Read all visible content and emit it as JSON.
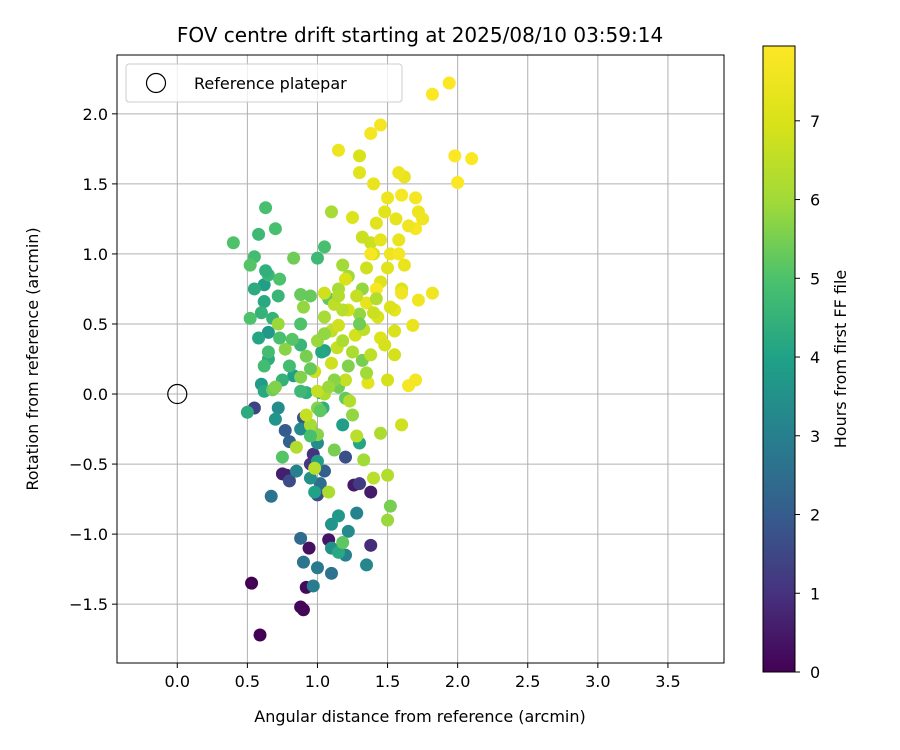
{
  "chart_data": {
    "type": "scatter",
    "title": "FOV centre drift starting at 2025/08/10 03:59:14",
    "xlabel": "Angular distance from reference (arcmin)",
    "ylabel": "Rotation from reference (arcmin)",
    "xlim": [
      -0.43,
      3.9
    ],
    "ylim": [
      -1.92,
      2.42
    ],
    "grid": true,
    "x_ticks": [
      0.0,
      0.5,
      1.0,
      1.5,
      2.0,
      2.5,
      3.0,
      3.5
    ],
    "x_tick_labels": [
      "0.0",
      "0.5",
      "1.0",
      "1.5",
      "2.0",
      "2.5",
      "3.0",
      "3.5"
    ],
    "y_ticks": [
      -1.5,
      -1.0,
      -0.5,
      0.0,
      0.5,
      1.0,
      1.5,
      2.0
    ],
    "y_tick_labels": [
      "−1.5",
      "−1.0",
      "−0.5",
      "0.0",
      "0.5",
      "1.0",
      "1.5",
      "2.0"
    ],
    "legend": {
      "placement": "top-left",
      "entries": [
        "Reference platepar"
      ]
    },
    "reference_point": {
      "x": 0.0,
      "y": 0.0,
      "label": "Reference platepar"
    },
    "colorbar": {
      "label": "Hours from first FF file",
      "colormap": "viridis",
      "range": [
        0,
        7.95
      ],
      "ticks": [
        0,
        1,
        2,
        3,
        4,
        5,
        6,
        7
      ],
      "tick_labels": [
        "0",
        "1",
        "2",
        "3",
        "4",
        "5",
        "6",
        "7"
      ]
    },
    "points": [
      [
        0.53,
        -1.35,
        0.0
      ],
      [
        0.59,
        -1.72,
        0.0
      ],
      [
        0.88,
        -1.52,
        0.1
      ],
      [
        0.9,
        -1.54,
        0.1
      ],
      [
        0.92,
        -1.38,
        0.2
      ],
      [
        0.94,
        -1.1,
        0.3
      ],
      [
        1.08,
        -1.04,
        0.4
      ],
      [
        1.38,
        -0.7,
        0.5
      ],
      [
        1.26,
        -0.65,
        0.5
      ],
      [
        0.75,
        -0.57,
        0.6
      ],
      [
        0.78,
        -0.58,
        0.6
      ],
      [
        1.38,
        -1.08,
        0.9
      ],
      [
        0.97,
        -0.43,
        1.0
      ],
      [
        0.95,
        -0.5,
        1.1
      ],
      [
        1.3,
        -0.64,
        1.2
      ],
      [
        0.55,
        -0.1,
        1.4
      ],
      [
        0.8,
        -0.62,
        1.6
      ],
      [
        1.0,
        -0.72,
        1.6
      ],
      [
        1.2,
        -0.45,
        1.7
      ],
      [
        0.9,
        -0.17,
        1.8
      ],
      [
        0.77,
        -0.26,
        2.0
      ],
      [
        1.05,
        -0.55,
        2.1
      ],
      [
        0.8,
        -0.34,
        2.2
      ],
      [
        0.88,
        -1.03,
        2.4
      ],
      [
        1.02,
        -0.64,
        2.5
      ],
      [
        0.67,
        -0.73,
        2.6
      ],
      [
        1.1,
        -1.28,
        2.6
      ],
      [
        0.9,
        -1.2,
        2.7
      ],
      [
        1.0,
        -1.24,
        2.8
      ],
      [
        0.97,
        -1.37,
        2.9
      ],
      [
        1.2,
        -1.15,
        3.0
      ],
      [
        1.28,
        -0.85,
        3.1
      ],
      [
        1.35,
        -1.22,
        3.2
      ],
      [
        1.22,
        -0.98,
        3.3
      ],
      [
        0.88,
        -0.25,
        3.3
      ],
      [
        1.0,
        -0.35,
        3.4
      ],
      [
        0.72,
        -0.1,
        3.4
      ],
      [
        0.95,
        -0.6,
        3.5
      ],
      [
        1.1,
        -1.1,
        3.5
      ],
      [
        0.7,
        -0.18,
        3.6
      ],
      [
        1.1,
        -0.93,
        3.6
      ],
      [
        1.15,
        -0.87,
        3.7
      ],
      [
        0.65,
        0.44,
        3.7
      ],
      [
        0.6,
        0.07,
        3.8
      ],
      [
        1.02,
        0.01,
        3.8
      ],
      [
        0.83,
        0.13,
        3.9
      ],
      [
        1.0,
        -0.48,
        3.9
      ],
      [
        0.62,
        0.78,
        3.9
      ],
      [
        0.98,
        -0.7,
        4.0
      ],
      [
        1.05,
        0.31,
        4.0
      ],
      [
        0.95,
        -0.23,
        4.1
      ],
      [
        1.3,
        -0.35,
        4.1
      ],
      [
        1.03,
        0.3,
        4.1
      ],
      [
        0.62,
        0.66,
        4.2
      ],
      [
        1.15,
        -1.13,
        4.2
      ],
      [
        0.62,
        0.02,
        4.2
      ],
      [
        0.55,
        0.75,
        4.3
      ],
      [
        0.5,
        -0.13,
        4.3
      ],
      [
        0.65,
        0.25,
        4.3
      ],
      [
        1.04,
        -0.1,
        4.4
      ],
      [
        0.92,
        0.01,
        4.4
      ],
      [
        0.6,
        0.58,
        4.5
      ],
      [
        0.75,
        0.1,
        4.5
      ],
      [
        0.68,
        0.54,
        4.5
      ],
      [
        0.88,
        0.35,
        4.6
      ],
      [
        0.65,
        0.85,
        4.6
      ],
      [
        1.0,
        0.97,
        4.7
      ],
      [
        0.88,
        0.02,
        4.7
      ],
      [
        0.58,
        1.14,
        4.7
      ],
      [
        0.62,
        0.2,
        4.8
      ],
      [
        0.65,
        0.3,
        4.8
      ],
      [
        0.55,
        0.98,
        4.8
      ],
      [
        0.63,
        1.33,
        4.9
      ],
      [
        0.7,
        1.18,
        4.9
      ],
      [
        0.73,
        0.4,
        4.9
      ],
      [
        1.05,
        1.05,
        4.9
      ],
      [
        0.52,
        0.54,
        5.0
      ],
      [
        0.4,
        1.08,
        5.0
      ],
      [
        0.73,
        0.82,
        5.0
      ],
      [
        0.52,
        0.92,
        5.1
      ],
      [
        0.82,
        0.39,
        5.1
      ],
      [
        0.75,
        -0.45,
        5.1
      ],
      [
        1.08,
        0.68,
        5.2
      ],
      [
        1.18,
        -1.06,
        5.2
      ],
      [
        0.88,
        0.71,
        5.3
      ],
      [
        0.95,
        0.7,
        5.3
      ],
      [
        1.2,
        -0.03,
        5.3
      ],
      [
        0.83,
        0.97,
        5.4
      ],
      [
        0.68,
        0.03,
        5.4
      ],
      [
        1.15,
        0.05,
        5.4
      ],
      [
        1.52,
        -0.8,
        5.5
      ],
      [
        1.32,
        0.24,
        5.5
      ],
      [
        0.7,
        0.05,
        5.6
      ],
      [
        0.88,
        0.12,
        5.6
      ],
      [
        0.77,
        0.32,
        5.7
      ],
      [
        1.0,
        -0.29,
        5.7
      ],
      [
        1.32,
        0.75,
        5.8
      ],
      [
        1.3,
        0.57,
        5.8
      ],
      [
        0.72,
        0.5,
        5.9
      ],
      [
        1.5,
        -0.9,
        5.9
      ],
      [
        1.18,
        0.92,
        6.0
      ],
      [
        1.22,
        0.84,
        6.0
      ],
      [
        1.15,
        0.75,
        6.1
      ],
      [
        1.1,
        1.3,
        6.1
      ],
      [
        0.95,
        -0.22,
        6.1
      ],
      [
        1.05,
        0.0,
        6.2
      ],
      [
        1.08,
        -0.7,
        6.2
      ],
      [
        1.23,
        -0.05,
        6.3
      ],
      [
        1.5,
        -0.58,
        6.3
      ],
      [
        0.85,
        -0.38,
        6.3
      ],
      [
        0.98,
        -0.53,
        6.4
      ],
      [
        1.28,
        -0.3,
        6.4
      ],
      [
        1.4,
        -0.6,
        6.4
      ],
      [
        1.12,
        0.64,
        6.5
      ],
      [
        1.38,
        0.28,
        6.5
      ],
      [
        1.1,
        0.45,
        6.5
      ],
      [
        1.2,
        0.1,
        6.6
      ],
      [
        0.92,
        -0.15,
        6.6
      ],
      [
        1.0,
        0.02,
        6.6
      ],
      [
        1.32,
        1.12,
        6.7
      ],
      [
        1.38,
        1.08,
        6.7
      ],
      [
        1.05,
        0.72,
        6.8
      ],
      [
        1.6,
        -0.22,
        6.8
      ],
      [
        1.15,
        0.49,
        6.8
      ],
      [
        1.5,
        0.1,
        6.9
      ],
      [
        1.55,
        0.28,
        6.9
      ],
      [
        1.22,
        0.6,
        6.9
      ],
      [
        1.43,
        0.55,
        7.0
      ],
      [
        1.3,
        1.7,
        7.0
      ],
      [
        1.4,
        1.0,
        7.0
      ],
      [
        1.6,
        0.75,
        7.1
      ],
      [
        1.45,
        0.8,
        7.1
      ],
      [
        1.3,
        1.58,
        7.2
      ],
      [
        1.48,
        1.3,
        7.2
      ],
      [
        1.5,
        0.9,
        7.2
      ],
      [
        1.35,
        0.65,
        7.3
      ],
      [
        1.55,
        0.6,
        7.3
      ],
      [
        1.4,
        1.5,
        7.4
      ],
      [
        1.58,
        1.1,
        7.4
      ],
      [
        1.62,
        1.55,
        7.4
      ],
      [
        1.58,
        1.58,
        7.5
      ],
      [
        1.72,
        1.3,
        7.5
      ],
      [
        1.52,
        1.0,
        7.5
      ],
      [
        1.6,
        0.72,
        7.6
      ],
      [
        1.72,
        0.67,
        7.6
      ],
      [
        1.82,
        0.72,
        7.6
      ],
      [
        1.7,
        1.4,
        7.7
      ],
      [
        1.45,
        1.92,
        7.7
      ],
      [
        1.38,
        1.86,
        7.7
      ],
      [
        1.42,
        0.75,
        7.8
      ],
      [
        1.38,
        1.0,
        7.8
      ],
      [
        1.82,
        2.14,
        7.9
      ],
      [
        1.94,
        2.22,
        7.9
      ],
      [
        1.98,
        1.7,
        7.9
      ],
      [
        2.0,
        1.51,
        7.9
      ],
      [
        2.1,
        1.68,
        7.9
      ],
      [
        1.7,
        1.18,
        7.8
      ],
      [
        1.65,
        0.06,
        7.8
      ],
      [
        1.7,
        0.1,
        7.7
      ],
      [
        1.15,
        1.74,
        7.5
      ],
      [
        1.62,
        0.92,
        7.4
      ],
      [
        1.56,
        1.25,
        7.3
      ],
      [
        1.36,
        0.08,
        7.2
      ],
      [
        1.45,
        0.4,
        7.1
      ],
      [
        1.2,
        0.82,
        7.0
      ],
      [
        1.27,
        0.42,
        6.9
      ],
      [
        1.1,
        0.22,
        6.8
      ],
      [
        0.98,
        0.16,
        6.7
      ],
      [
        1.14,
        0.33,
        6.6
      ],
      [
        1.33,
        0.46,
        6.5
      ],
      [
        1.18,
        0.6,
        6.4
      ],
      [
        1.42,
        0.68,
        6.3
      ],
      [
        1.25,
        0.3,
        6.2
      ],
      [
        1.05,
        0.55,
        6.1
      ],
      [
        1.35,
        0.15,
        6.0
      ],
      [
        1.0,
        0.38,
        5.9
      ],
      [
        0.9,
        0.62,
        5.8
      ],
      [
        1.12,
        0.1,
        5.7
      ],
      [
        1.22,
        0.2,
        5.6
      ],
      [
        0.92,
        0.27,
        5.5
      ],
      [
        1.3,
        0.5,
        5.4
      ],
      [
        1.48,
        0.35,
        6.9
      ],
      [
        1.55,
        0.45,
        7.0
      ],
      [
        1.25,
        1.26,
        7.1
      ],
      [
        1.45,
        1.1,
        7.3
      ],
      [
        1.65,
        1.2,
        7.6
      ],
      [
        1.58,
        1.0,
        7.7
      ],
      [
        1.5,
        1.4,
        7.5
      ],
      [
        1.42,
        1.22,
        7.2
      ],
      [
        1.35,
        0.9,
        6.8
      ],
      [
        1.28,
        0.7,
        6.6
      ],
      [
        1.18,
        0.38,
        6.2
      ],
      [
        1.08,
        0.05,
        5.9
      ],
      [
        1.0,
        -0.1,
        5.6
      ],
      [
        0.95,
        0.18,
        5.3
      ],
      [
        0.88,
        0.5,
        5.0
      ],
      [
        0.8,
        0.2,
        4.8
      ],
      [
        0.72,
        0.7,
        4.6
      ],
      [
        0.63,
        0.88,
        4.4
      ],
      [
        0.58,
        0.4,
        4.1
      ],
      [
        0.85,
        -0.55,
        3.0
      ],
      [
        1.18,
        -0.22,
        3.9
      ],
      [
        1.45,
        -0.28,
        6.2
      ],
      [
        1.33,
        -0.47,
        6.0
      ],
      [
        1.25,
        -0.15,
        5.8
      ],
      [
        1.12,
        -0.4,
        5.5
      ],
      [
        1.02,
        -0.12,
        5.2
      ],
      [
        0.95,
        -0.3,
        4.9
      ],
      [
        1.05,
        0.43,
        5.8
      ],
      [
        1.15,
        0.7,
        6.3
      ],
      [
        1.4,
        0.58,
        6.7
      ],
      [
        1.52,
        0.62,
        7.1
      ],
      [
        1.68,
        0.49,
        7.4
      ],
      [
        1.75,
        1.25,
        7.6
      ],
      [
        1.6,
        1.42,
        7.8
      ]
    ]
  }
}
